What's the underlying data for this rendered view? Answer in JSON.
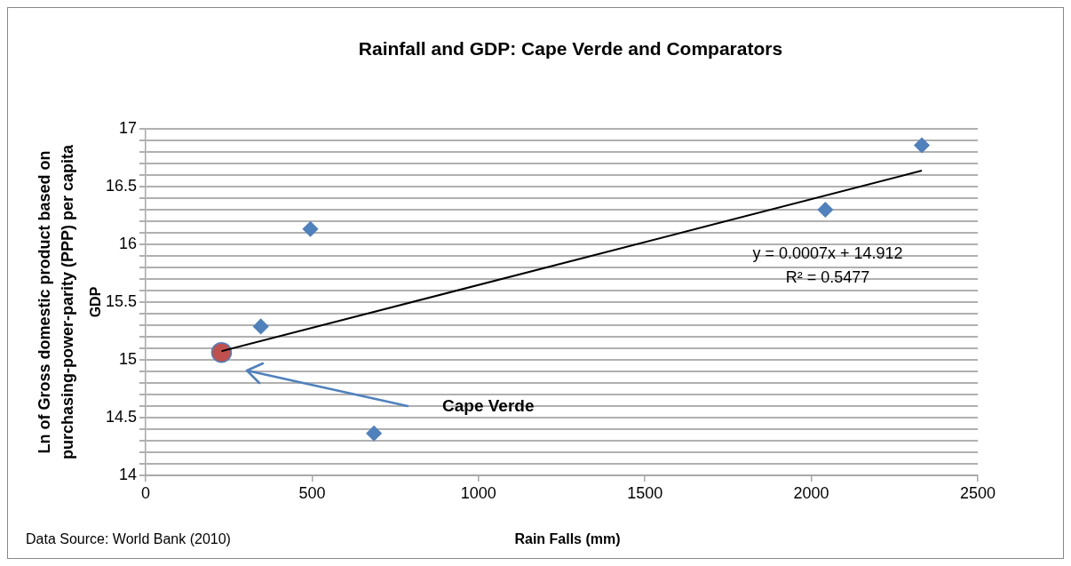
{
  "chart_data": {
    "type": "scatter",
    "title": "Rainfall and GDP: Cape Verde and Comparators",
    "xlabel": "Rain Falls (mm)",
    "ylabel": "Ln of Gross domestic product based on purchasing-power-parity (PPP) per capita",
    "annotations": [
      "Data Source: World Bank (2010)",
      "GDP",
      "Cape Verde",
      "y = 0.0007x + 14.912",
      "R² = 0.5477"
    ],
    "series": [
      {
        "color": "#4f81bd",
        "marker": "diamond",
        "x": [
          346,
          495,
          686,
          2042,
          2332
        ],
        "values": [
          15.289,
          16.133,
          14.363,
          16.3,
          16.858
        ]
      },
      {
        "color": "#c0504d",
        "marker": "circle",
        "x": [
          228
        ],
        "values": [
          15.064
        ]
      },
      {
        "type": "line",
        "color": "#000000",
        "marker": "none",
        "x": [
          228,
          2332
        ],
        "values": [
          15.075,
          16.638
        ]
      }
    ],
    "xlim": [
      0,
      2500
    ],
    "xticks": [
      0,
      500,
      1000,
      1500,
      2000,
      2500
    ],
    "ylim": [
      14,
      17
    ],
    "yticks": [
      14,
      {
        "value": 14.1,
        "label": null
      },
      {
        "value": 14.2,
        "label": null
      },
      {
        "value": 14.3,
        "label": null
      },
      {
        "value": 14.4,
        "label": null
      },
      14.5,
      {
        "value": 14.6,
        "label": null
      },
      {
        "value": 14.7,
        "label": null
      },
      {
        "value": 14.8,
        "label": null
      },
      {
        "value": 14.9,
        "label": null
      },
      15,
      {
        "value": 15.1,
        "label": null
      },
      {
        "value": 15.2,
        "label": null
      },
      {
        "value": 15.3,
        "label": null
      },
      {
        "value": 15.4,
        "label": null
      },
      15.5,
      {
        "value": 15.6,
        "label": null
      },
      {
        "value": 15.7,
        "label": null
      },
      {
        "value": 15.8,
        "label": null
      },
      {
        "value": 15.9,
        "label": null
      },
      16,
      {
        "value": 16.1,
        "label": null
      },
      {
        "value": 16.2,
        "label": null
      },
      {
        "value": 16.3,
        "label": null
      },
      {
        "value": 16.4,
        "label": null
      },
      16.5,
      {
        "value": 16.6,
        "label": null
      },
      {
        "value": 16.7,
        "label": null
      },
      {
        "value": 16.8,
        "label": null
      },
      {
        "value": 16.9,
        "label": null
      },
      17
    ],
    "grid": "y",
    "legend": false
  }
}
